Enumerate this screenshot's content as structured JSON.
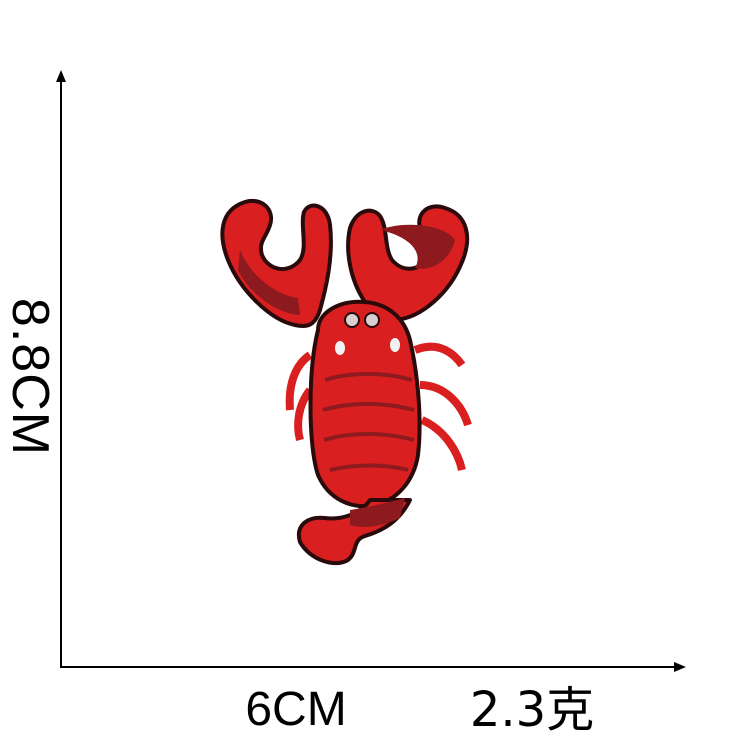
{
  "labels": {
    "height": "8.8CM",
    "width": "6CM",
    "weight": "2.3克"
  },
  "colors": {
    "axis": "#000000",
    "patch_red": "#d91f1f",
    "patch_dark_red": "#8c1a1f",
    "patch_border": "#2a0a0a"
  },
  "image": {
    "subject": "lobster-embroidered-patch"
  }
}
